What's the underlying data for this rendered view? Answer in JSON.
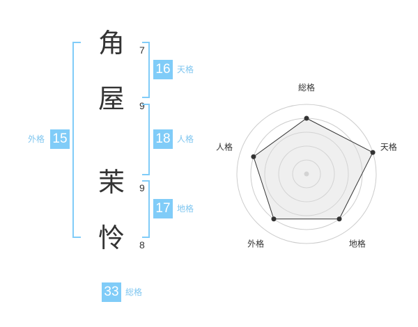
{
  "name": {
    "chars": [
      {
        "char": "角",
        "strokes": "7"
      },
      {
        "char": "屋",
        "strokes": "9"
      },
      {
        "char": "茉",
        "strokes": "9"
      },
      {
        "char": "怜",
        "strokes": "8"
      }
    ]
  },
  "kaku": {
    "tenkaku": {
      "label": "天格",
      "value": "16"
    },
    "jinkaku": {
      "label": "人格",
      "value": "18"
    },
    "chikaku": {
      "label": "地格",
      "value": "17"
    },
    "gaikaku": {
      "label": "外格",
      "value": "15"
    },
    "soukaku": {
      "label": "総格",
      "value": "33"
    }
  },
  "accent_color": "#80ccf8",
  "chart_data": {
    "type": "radar",
    "categories": [
      "総格",
      "天格",
      "地格",
      "外格",
      "人格"
    ],
    "values": [
      4,
      5,
      4,
      4,
      4
    ],
    "rlim": [
      0,
      5
    ],
    "rings": 5
  }
}
